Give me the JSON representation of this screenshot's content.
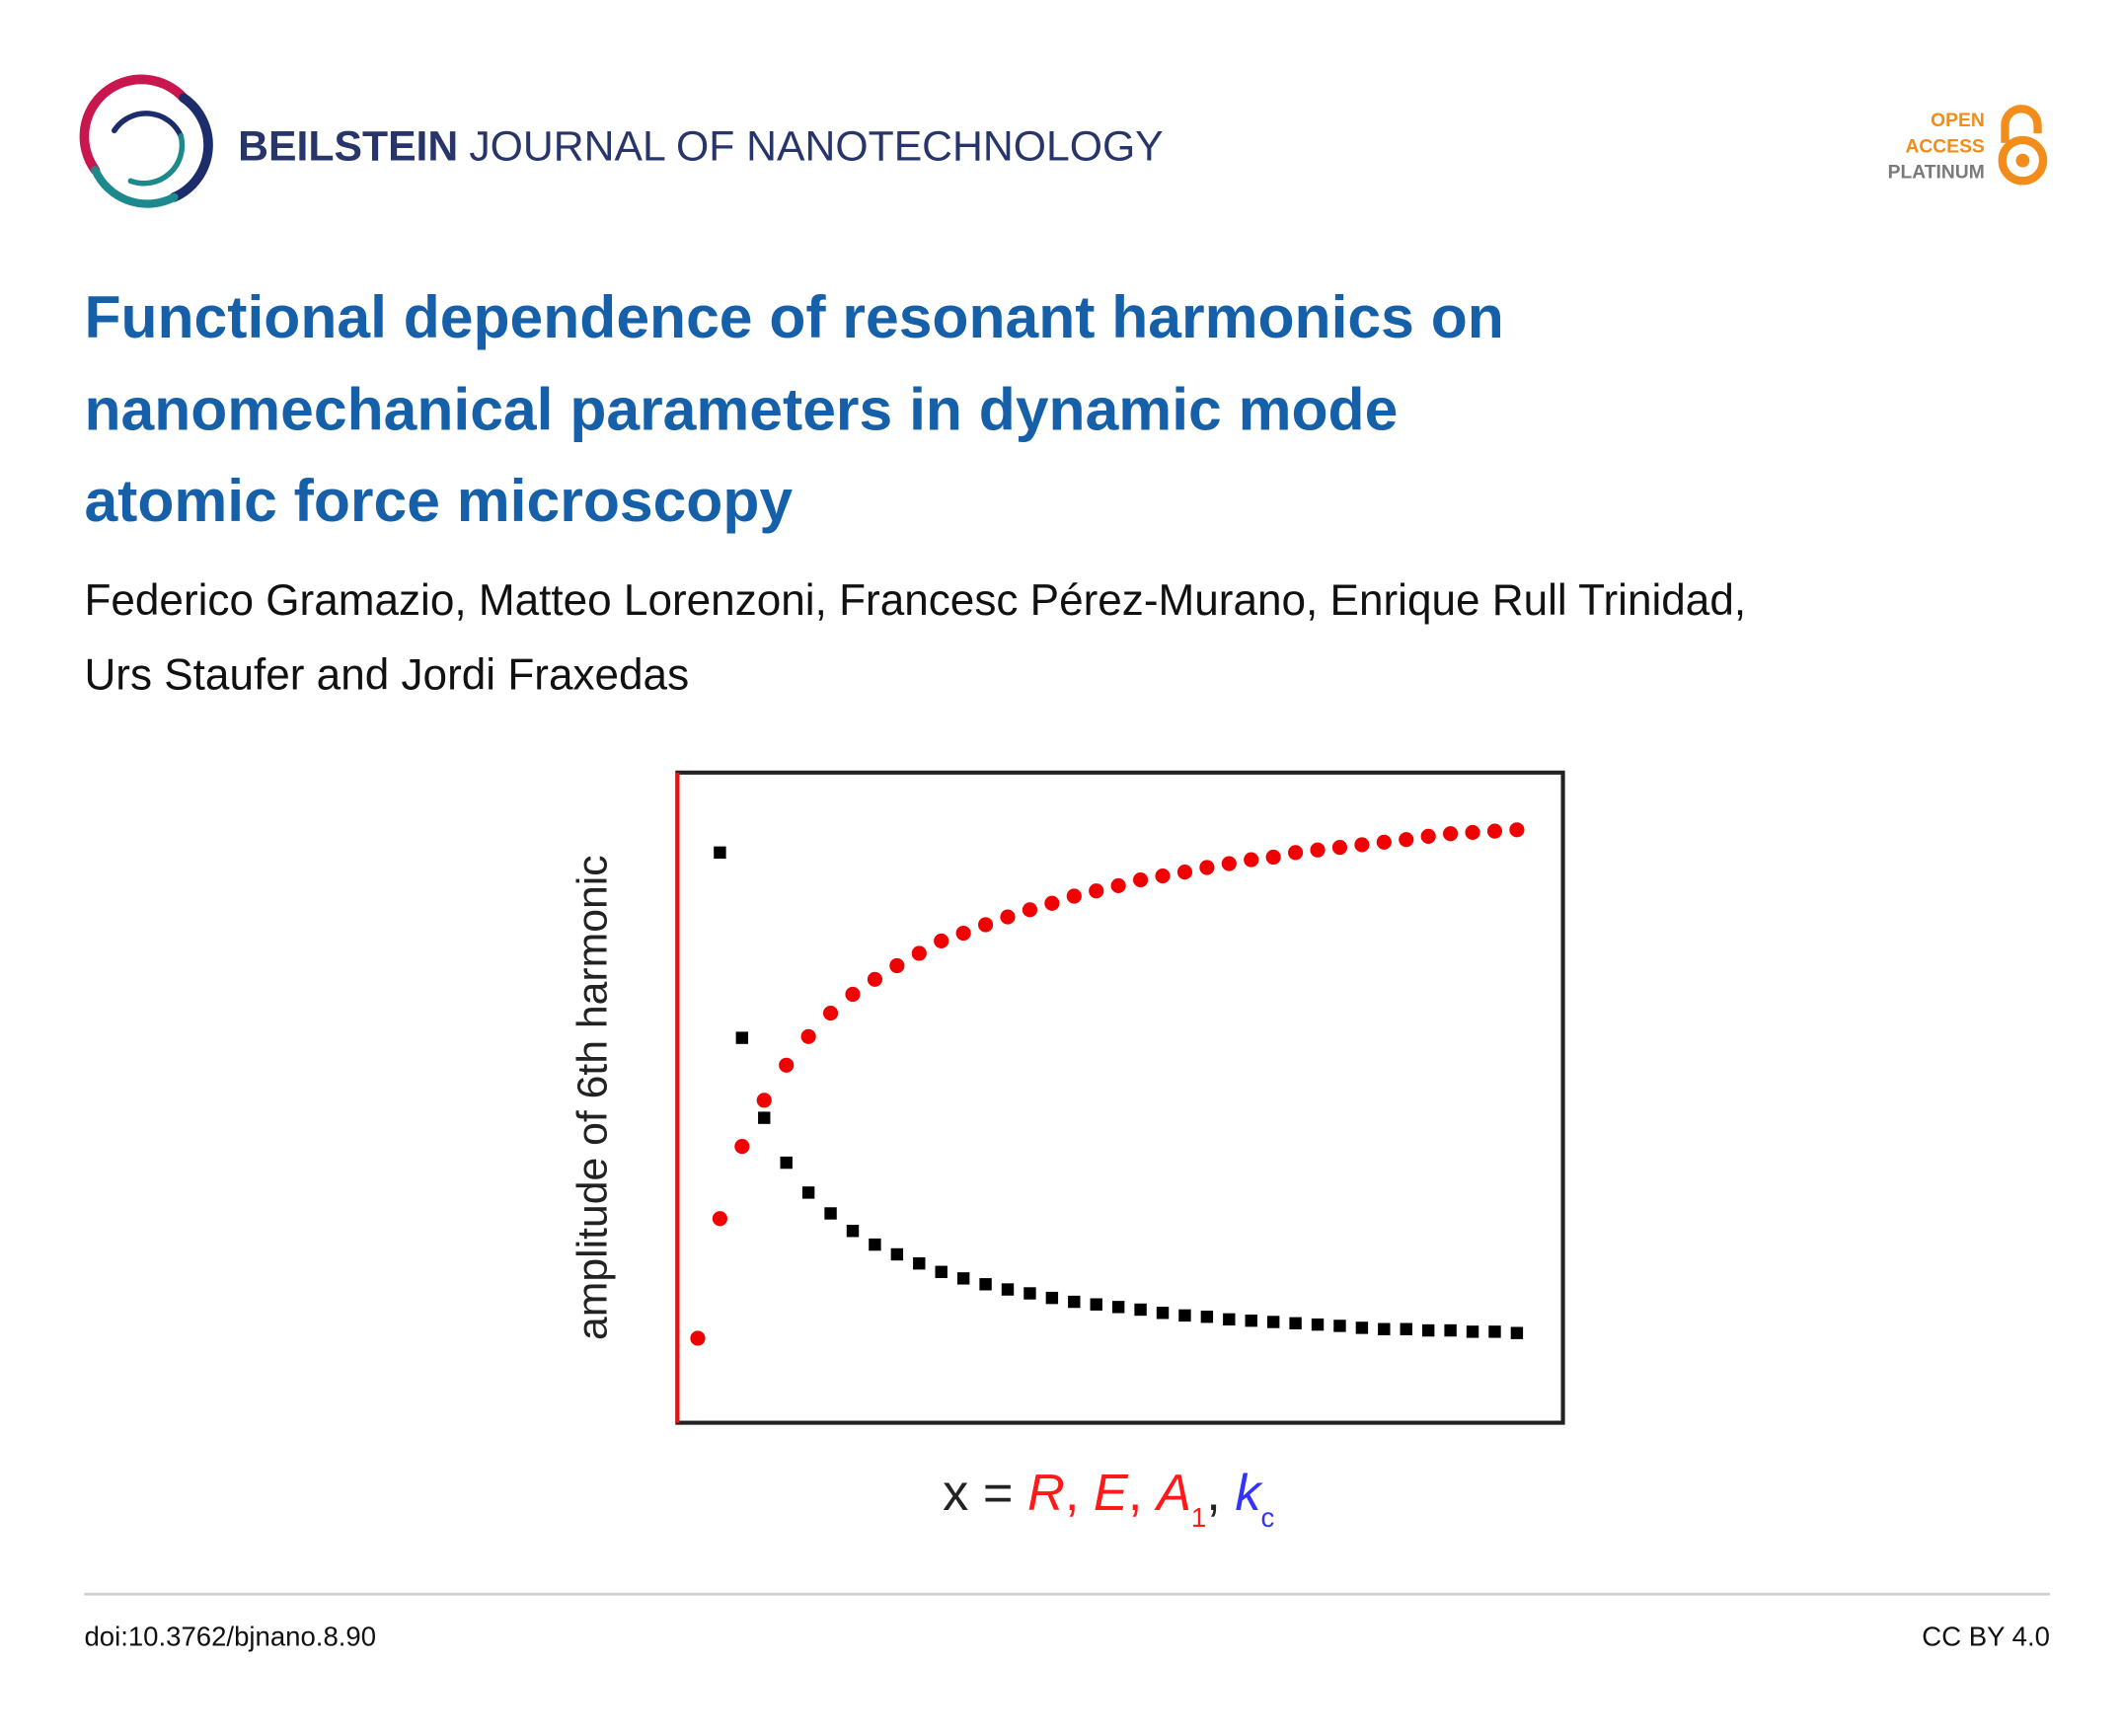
{
  "header": {
    "journal_bold": "BEILSTEIN",
    "journal_rest": "JOURNAL OF NANOTECHNOLOGY",
    "badge": [
      "OPEN",
      "ACCESS",
      "PLATINUM"
    ]
  },
  "title_lines": [
    "Functional dependence of resonant harmonics on",
    "nanomechanical parameters in dynamic mode",
    "atomic force microscopy"
  ],
  "author_lines": [
    "Federico Gramazio, Matteo Lorenzoni, Francesc Pérez-Murano, Enrique Rull Trinidad,",
    "Urs Staufer and Jordi Fraxedas"
  ],
  "chart_data": {
    "type": "scatter",
    "y_label": "amplitude of 6th harmonic",
    "x_label_parts": [
      {
        "text": "x = ",
        "color": "#222222"
      },
      {
        "text": "R",
        "color": "#ff1a1a",
        "italic": true
      },
      {
        "text": ", ",
        "color": "#ff1a1a"
      },
      {
        "text": "E",
        "color": "#ff1a1a",
        "italic": true
      },
      {
        "text": ", ",
        "color": "#ff1a1a"
      },
      {
        "text": "A",
        "color": "#ff1a1a",
        "italic": true
      },
      {
        "text": "1",
        "color": "#ff1a1a",
        "sub": true
      },
      {
        "text": ", ",
        "color": "#222222"
      },
      {
        "text": "k",
        "color": "#3333ff",
        "italic": true
      },
      {
        "text": "c",
        "color": "#3333ff",
        "sub": true
      }
    ],
    "xlim": [
      0,
      1
    ],
    "ylim": [
      0,
      1
    ],
    "series": [
      {
        "color": "#f00000",
        "marker": "circle",
        "x": [
          0.023,
          0.048,
          0.073,
          0.098,
          0.123,
          0.148,
          0.173,
          0.198,
          0.223,
          0.248,
          0.273,
          0.298,
          0.323,
          0.348,
          0.373,
          0.398,
          0.423,
          0.448,
          0.473,
          0.498,
          0.523,
          0.548,
          0.573,
          0.598,
          0.623,
          0.648,
          0.673,
          0.698,
          0.723,
          0.748,
          0.773,
          0.798,
          0.823,
          0.848,
          0.873,
          0.898,
          0.923,
          0.948
        ],
        "values": [
          0.13,
          0.314,
          0.425,
          0.496,
          0.55,
          0.594,
          0.63,
          0.659,
          0.682,
          0.703,
          0.722,
          0.741,
          0.753,
          0.766,
          0.778,
          0.789,
          0.799,
          0.81,
          0.818,
          0.826,
          0.835,
          0.841,
          0.847,
          0.854,
          0.86,
          0.866,
          0.87,
          0.877,
          0.881,
          0.885,
          0.889,
          0.893,
          0.897,
          0.902,
          0.906,
          0.908,
          0.91,
          0.912
        ]
      },
      {
        "color": "#000000",
        "marker": "square",
        "x": [
          0.048,
          0.073,
          0.098,
          0.123,
          0.148,
          0.173,
          0.198,
          0.223,
          0.248,
          0.273,
          0.298,
          0.323,
          0.348,
          0.373,
          0.398,
          0.423,
          0.448,
          0.473,
          0.498,
          0.523,
          0.548,
          0.573,
          0.598,
          0.623,
          0.648,
          0.673,
          0.698,
          0.723,
          0.748,
          0.773,
          0.798,
          0.823,
          0.848,
          0.873,
          0.898,
          0.923,
          0.948
        ],
        "values": [
          0.877,
          0.592,
          0.469,
          0.4,
          0.354,
          0.322,
          0.295,
          0.274,
          0.259,
          0.245,
          0.232,
          0.222,
          0.213,
          0.205,
          0.199,
          0.192,
          0.186,
          0.182,
          0.178,
          0.174,
          0.169,
          0.165,
          0.163,
          0.159,
          0.157,
          0.155,
          0.153,
          0.151,
          0.149,
          0.146,
          0.144,
          0.144,
          0.142,
          0.142,
          0.14,
          0.14,
          0.138
        ]
      }
    ]
  },
  "footer": {
    "doi": "doi:10.3762/bjnano.8.90",
    "license": "CC BY 4.0"
  }
}
